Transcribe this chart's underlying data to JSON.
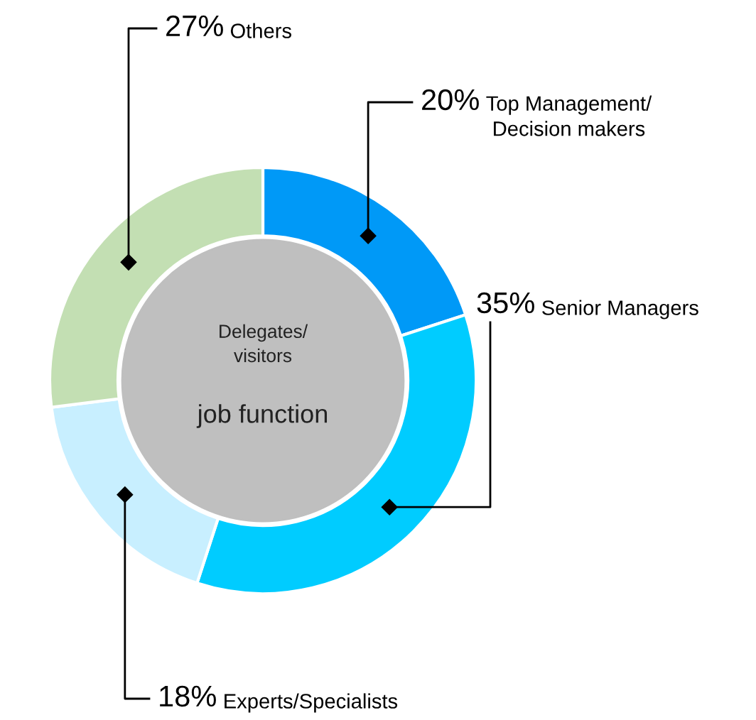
{
  "chart_data": {
    "type": "donut",
    "title": "Delegates/\nvisitors",
    "subtitle": "job function",
    "categories": [
      "Top Management/\nDecision makers",
      "Senior Managers",
      "Experts/Specialists",
      "Others"
    ],
    "values": [
      20,
      35,
      18,
      27
    ],
    "value_labels": [
      "20%",
      "35%",
      "18%",
      "27%"
    ],
    "colors": [
      "#0099f7",
      "#00ccff",
      "#c8efff",
      "#c3dfb3"
    ]
  }
}
